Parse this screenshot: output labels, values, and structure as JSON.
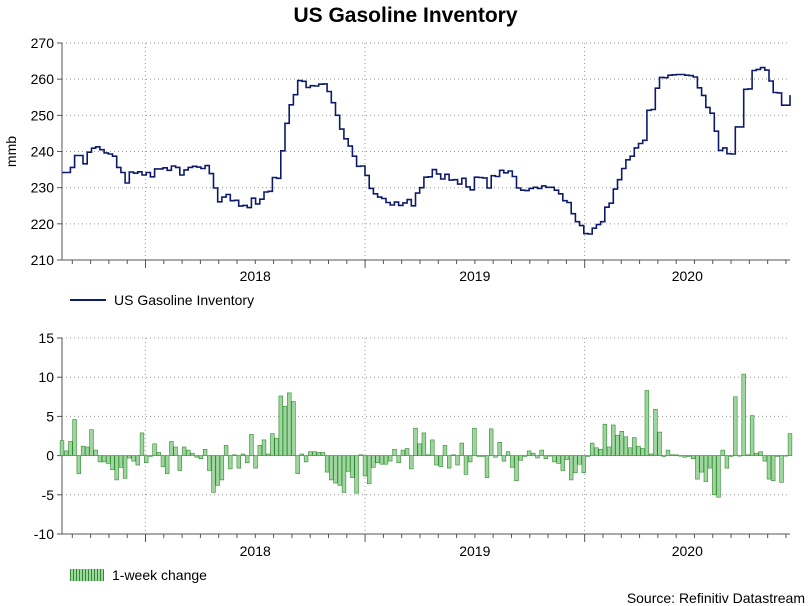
{
  "chart_data": [
    {
      "type": "line",
      "title": "US Gasoline Inventory",
      "ylabel": "mmb",
      "xlabel": "",
      "ylim": [
        210,
        270
      ],
      "yticks": [
        "270",
        "260",
        "250",
        "240",
        "230",
        "220",
        "210"
      ],
      "xticks": [
        "2018",
        "2019",
        "2020"
      ],
      "legend": "US Gasoline Inventory",
      "legend_position": "bottom-left",
      "color": "#0d1a6b",
      "x_start": 2017.62,
      "x_step_weeks": 1,
      "values": [
        234.2,
        234.2,
        235.6,
        238.9,
        238.9,
        236.6,
        239.8,
        240.9,
        241.3,
        240.5,
        239.6,
        239.3,
        238.7,
        235.6,
        234.2,
        231.3,
        234.3,
        234.0,
        234.4,
        233.5,
        234.2,
        233.0,
        235.2,
        235.2,
        235.5,
        234.8,
        236.0,
        235.6,
        233.5,
        234.9,
        235.6,
        235.9,
        235.7,
        235.3,
        236.1,
        233.9,
        229.9,
        226.1,
        227.4,
        228.1,
        226.4,
        226.5,
        224.9,
        225.1,
        224.5,
        227.1,
        225.5,
        226.8,
        228.8,
        229.0,
        232.8,
        232.6,
        240.2,
        247.8,
        252.9,
        255.7,
        259.6,
        259.4,
        257.7,
        258.2,
        258.1,
        258.6,
        258.7,
        256.6,
        253.5,
        250.0,
        246.2,
        243.5,
        241.5,
        238.7,
        235.9,
        236.0,
        233.4,
        229.8,
        228.3,
        227.4,
        227.0,
        225.9,
        225.2,
        226.0,
        225.1,
        225.8,
        226.7,
        225.0,
        228.5,
        230.0,
        232.9,
        233.0,
        235.0,
        233.8,
        232.4,
        233.7,
        232.1,
        232.2,
        231.0,
        232.6,
        230.2,
        229.4,
        232.9,
        232.8,
        232.7,
        229.9,
        233.3,
        233.1,
        234.8,
        234.1,
        234.6,
        233.1,
        229.9,
        229.3,
        229.2,
        229.8,
        230.1,
        229.8,
        230.5,
        230.1,
        230.1,
        229.3,
        228.3,
        226.4,
        225.9,
        222.8,
        220.6,
        219.5,
        217.3,
        217.2,
        218.8,
        219.8,
        220.6,
        224.6,
        225.7,
        229.6,
        232.2,
        235.3,
        237.7,
        238.7,
        241.0,
        242.2,
        243.1,
        251.4,
        251.6,
        257.5,
        260.5,
        260.4,
        261.1,
        261.2,
        261.3,
        261.3,
        261.1,
        261.0,
        260.6,
        257.6,
        255.5,
        252.2,
        250.6,
        245.6,
        240.3,
        241.0,
        239.4,
        239.3,
        246.8,
        246.8,
        257.2,
        257.3,
        262.4,
        262.7,
        263.2,
        262.5,
        259.5,
        256.3,
        256.2,
        252.8,
        252.8,
        255.6
      ]
    },
    {
      "type": "bar",
      "title": "",
      "ylabel": "",
      "xlabel": "",
      "ylim": [
        -10,
        15
      ],
      "yticks": [
        "15",
        "10",
        "5",
        "0",
        "-5",
        "-10"
      ],
      "xticks": [
        "2018",
        "2019",
        "2020"
      ],
      "legend": "1-week change",
      "legend_position": "bottom-left",
      "color": "#2e8b2e",
      "fill": "#9fd69f",
      "x_start": 2017.62,
      "x_step_weeks": 1,
      "values": [
        1.9,
        0.6,
        1.8,
        4.6,
        -2.3,
        1.2,
        1.1,
        3.3,
        0.7,
        -0.8,
        -0.8,
        -1.0,
        -1.8,
        -3.1,
        -1.5,
        -2.9,
        -0.3,
        -0.7,
        -1.2,
        2.9,
        -0.9,
        -0.1,
        1.5,
        0.4,
        -1.4,
        -2.3,
        1.8,
        1.1,
        -1.9,
        1.1,
        0.7,
        0.3,
        -0.2,
        -0.4,
        0.8,
        -1.9,
        -4.7,
        -3.8,
        -3.1,
        1.3,
        -1.7,
        0.1,
        -1.6,
        0.2,
        -0.9,
        2.7,
        -1.6,
        1.3,
        2.0,
        0.2,
        2.8,
        2.2,
        7.6,
        6.3,
        8.0,
        6.9,
        -2.3,
        0.2,
        -0.8,
        0.5,
        0.5,
        0.4,
        0.4,
        -2.1,
        -3.1,
        -3.5,
        -3.8,
        -4.7,
        -2.0,
        -2.8,
        -4.8,
        0.1,
        -2.6,
        -3.6,
        -1.5,
        -0.9,
        -1.1,
        -1.1,
        -0.7,
        0.8,
        -0.9,
        0.7,
        0.9,
        -1.7,
        3.5,
        1.5,
        2.9,
        0.1,
        2.0,
        -1.2,
        -1.4,
        1.3,
        -1.6,
        0.1,
        -1.2,
        1.6,
        -2.4,
        -0.8,
        3.5,
        -0.1,
        -0.1,
        -2.8,
        3.4,
        -0.2,
        1.7,
        -0.7,
        0.5,
        -1.5,
        -3.2,
        -0.6,
        -0.1,
        0.6,
        0.3,
        -0.3,
        0.7,
        -0.4,
        0.0,
        -0.8,
        -1.0,
        -1.9,
        -0.5,
        -3.1,
        -2.2,
        -1.1,
        -2.2,
        -0.1,
        1.6,
        1.0,
        0.8,
        4.0,
        1.1,
        3.9,
        2.6,
        3.1,
        2.4,
        1.0,
        2.3,
        1.2,
        0.9,
        8.3,
        0.2,
        5.9,
        3.0,
        -0.1,
        0.7,
        0.1,
        0.1,
        0.0,
        -0.2,
        -0.1,
        -0.4,
        -3.0,
        -2.1,
        -3.3,
        -1.6,
        -5.0,
        -5.3,
        0.7,
        -1.6,
        -0.1,
        7.5,
        0.0,
        10.4,
        0.1,
        5.1,
        0.3,
        0.5,
        -0.7,
        -3.0,
        -3.2,
        -0.1,
        -3.4,
        0.0,
        2.8
      ]
    }
  ],
  "legends": {
    "top": "US Gasoline Inventory",
    "bottom": "1-week change"
  },
  "source": "Source: Refinitiv Datastream"
}
